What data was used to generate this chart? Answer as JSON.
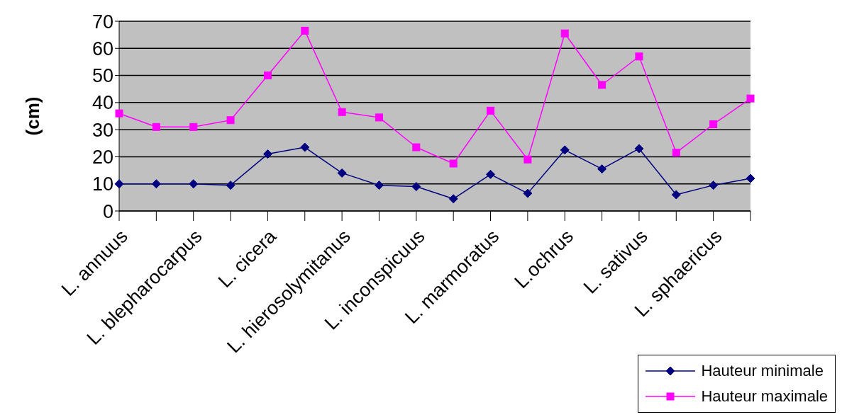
{
  "chart_data": {
    "type": "line",
    "ylabel": "(cm)",
    "categories": [
      "L. annuus",
      null,
      "L. blepharocarpus",
      null,
      "L. cicera",
      null,
      "L. hierosolymitanus",
      null,
      "L. inconspicuus",
      null,
      "L. marmoratus",
      null,
      "L.ochrus",
      null,
      "L. sativus",
      null,
      "L. sphaericus",
      null
    ],
    "series": [
      {
        "name": "Hauteur minimale",
        "color": "#000080",
        "marker": "diamond",
        "values": [
          10,
          10,
          10,
          9.5,
          21,
          23.5,
          14,
          9.5,
          9,
          4.5,
          13.5,
          6.5,
          22.5,
          15.5,
          23,
          6,
          9.5,
          12
        ]
      },
      {
        "name": "Hauteur maximale",
        "color": "#ff00ff",
        "marker": "square",
        "values": [
          36,
          31,
          31,
          33.5,
          50,
          66.5,
          36.5,
          34.5,
          23.5,
          17.5,
          37,
          19,
          65.5,
          46.5,
          57,
          21.5,
          32,
          41.5
        ]
      }
    ],
    "ylim": [
      0,
      70
    ],
    "yticks": [
      0,
      10,
      20,
      30,
      40,
      50,
      60,
      70
    ],
    "grid": "y",
    "legend": "bottom right",
    "line_style": "solid"
  }
}
